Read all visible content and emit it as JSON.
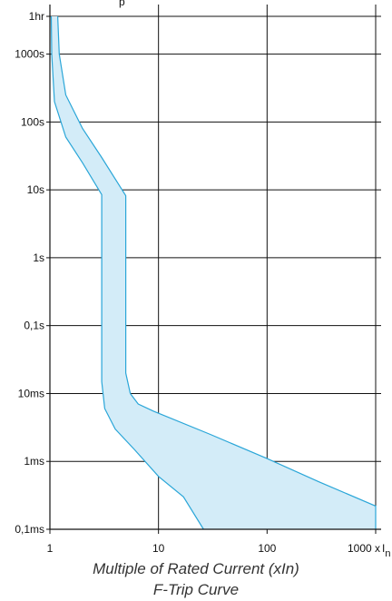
{
  "chart_data": {
    "type": "area",
    "title": "F-Trip Curve",
    "top_title_fragment": "p",
    "xlabel": "Multiple of Rated Current (xIn)",
    "ylabel": "",
    "xscale": "log",
    "yscale": "log",
    "xlim": [
      1,
      1000
    ],
    "ylim_seconds": [
      0.0001,
      3600
    ],
    "grid": true,
    "x_ticks": [
      {
        "value": 1,
        "label": "1"
      },
      {
        "value": 10,
        "label": "10"
      },
      {
        "value": 100,
        "label": "100"
      },
      {
        "value": 1000,
        "label": "1000 x"
      }
    ],
    "x_unit_symbol": "I",
    "x_unit_subscript": "n",
    "y_ticks": [
      {
        "value": 3600,
        "label": "1hr"
      },
      {
        "value": 1000,
        "label": "1000s"
      },
      {
        "value": 100,
        "label": "100s"
      },
      {
        "value": 10,
        "label": "10s"
      },
      {
        "value": 1,
        "label": "1s"
      },
      {
        "value": 0.1,
        "label": "0,1s"
      },
      {
        "value": 0.01,
        "label": "10ms"
      },
      {
        "value": 0.001,
        "label": "1ms"
      },
      {
        "value": 0.0001,
        "label": "0,1ms"
      }
    ],
    "band": {
      "fill_color": "#d3ecf8",
      "line_color": "#2aa6d8",
      "lower_curve": [
        [
          1.03,
          3600
        ],
        [
          1.04,
          1000
        ],
        [
          1.1,
          200
        ],
        [
          1.4,
          60
        ],
        [
          2.0,
          25
        ],
        [
          3.0,
          8.5
        ],
        [
          3.0,
          0.4
        ],
        [
          3.0,
          0.015
        ],
        [
          3.2,
          0.006
        ],
        [
          4.0,
          0.003
        ],
        [
          6.0,
          0.0015
        ],
        [
          10.0,
          0.0006
        ],
        [
          17.0,
          0.0003
        ],
        [
          26.0,
          0.0001
        ]
      ],
      "upper_curve": [
        [
          1.18,
          3600
        ],
        [
          1.22,
          1000
        ],
        [
          1.4,
          250
        ],
        [
          2.0,
          80
        ],
        [
          3.0,
          30
        ],
        [
          5.0,
          8.2
        ],
        [
          5.0,
          0.4
        ],
        [
          5.0,
          0.02
        ],
        [
          5.5,
          0.01
        ],
        [
          6.5,
          0.007
        ],
        [
          9.0,
          0.0055
        ],
        [
          30.0,
          0.0025
        ],
        [
          100.0,
          0.0011
        ],
        [
          300.0,
          0.0005
        ],
        [
          1000.0,
          0.00022
        ]
      ]
    }
  }
}
